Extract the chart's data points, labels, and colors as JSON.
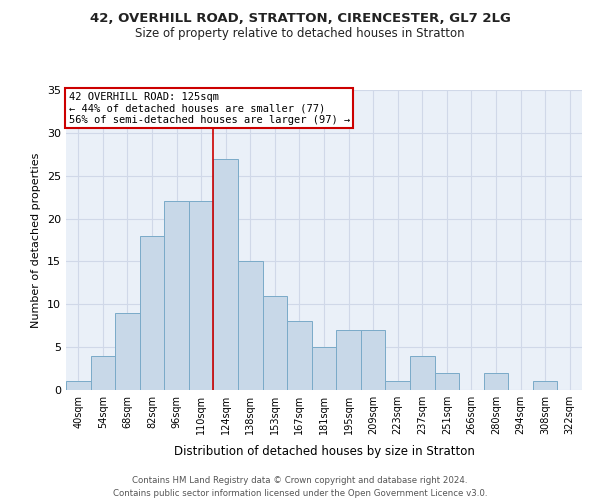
{
  "title_line1": "42, OVERHILL ROAD, STRATTON, CIRENCESTER, GL7 2LG",
  "title_line2": "Size of property relative to detached houses in Stratton",
  "xlabel": "Distribution of detached houses by size in Stratton",
  "ylabel": "Number of detached properties",
  "footnote1": "Contains HM Land Registry data © Crown copyright and database right 2024.",
  "footnote2": "Contains public sector information licensed under the Open Government Licence v3.0.",
  "bin_labels": [
    "40sqm",
    "54sqm",
    "68sqm",
    "82sqm",
    "96sqm",
    "110sqm",
    "124sqm",
    "138sqm",
    "153sqm",
    "167sqm",
    "181sqm",
    "195sqm",
    "209sqm",
    "223sqm",
    "237sqm",
    "251sqm",
    "266sqm",
    "280sqm",
    "294sqm",
    "308sqm",
    "322sqm"
  ],
  "bar_values": [
    1,
    4,
    9,
    18,
    22,
    22,
    27,
    15,
    11,
    8,
    5,
    7,
    7,
    1,
    4,
    2,
    0,
    2,
    0,
    1,
    0
  ],
  "bar_color": "#c8d8e8",
  "bar_edge_color": "#7aaac8",
  "grid_color": "#d0d8e8",
  "bg_color": "#eaf0f8",
  "annotation_text": "42 OVERHILL ROAD: 125sqm\n← 44% of detached houses are smaller (77)\n56% of semi-detached houses are larger (97) →",
  "annotation_box_color": "#cc0000",
  "vline_bin_index": 6,
  "ylim": [
    0,
    35
  ],
  "yticks": [
    0,
    5,
    10,
    15,
    20,
    25,
    30,
    35
  ],
  "title1_fontsize": 9.5,
  "title2_fontsize": 8.5,
  "xlabel_fontsize": 8.5,
  "ylabel_fontsize": 8,
  "xtick_fontsize": 7,
  "ytick_fontsize": 8,
  "footnote_fontsize": 6.2,
  "annot_fontsize": 7.5
}
